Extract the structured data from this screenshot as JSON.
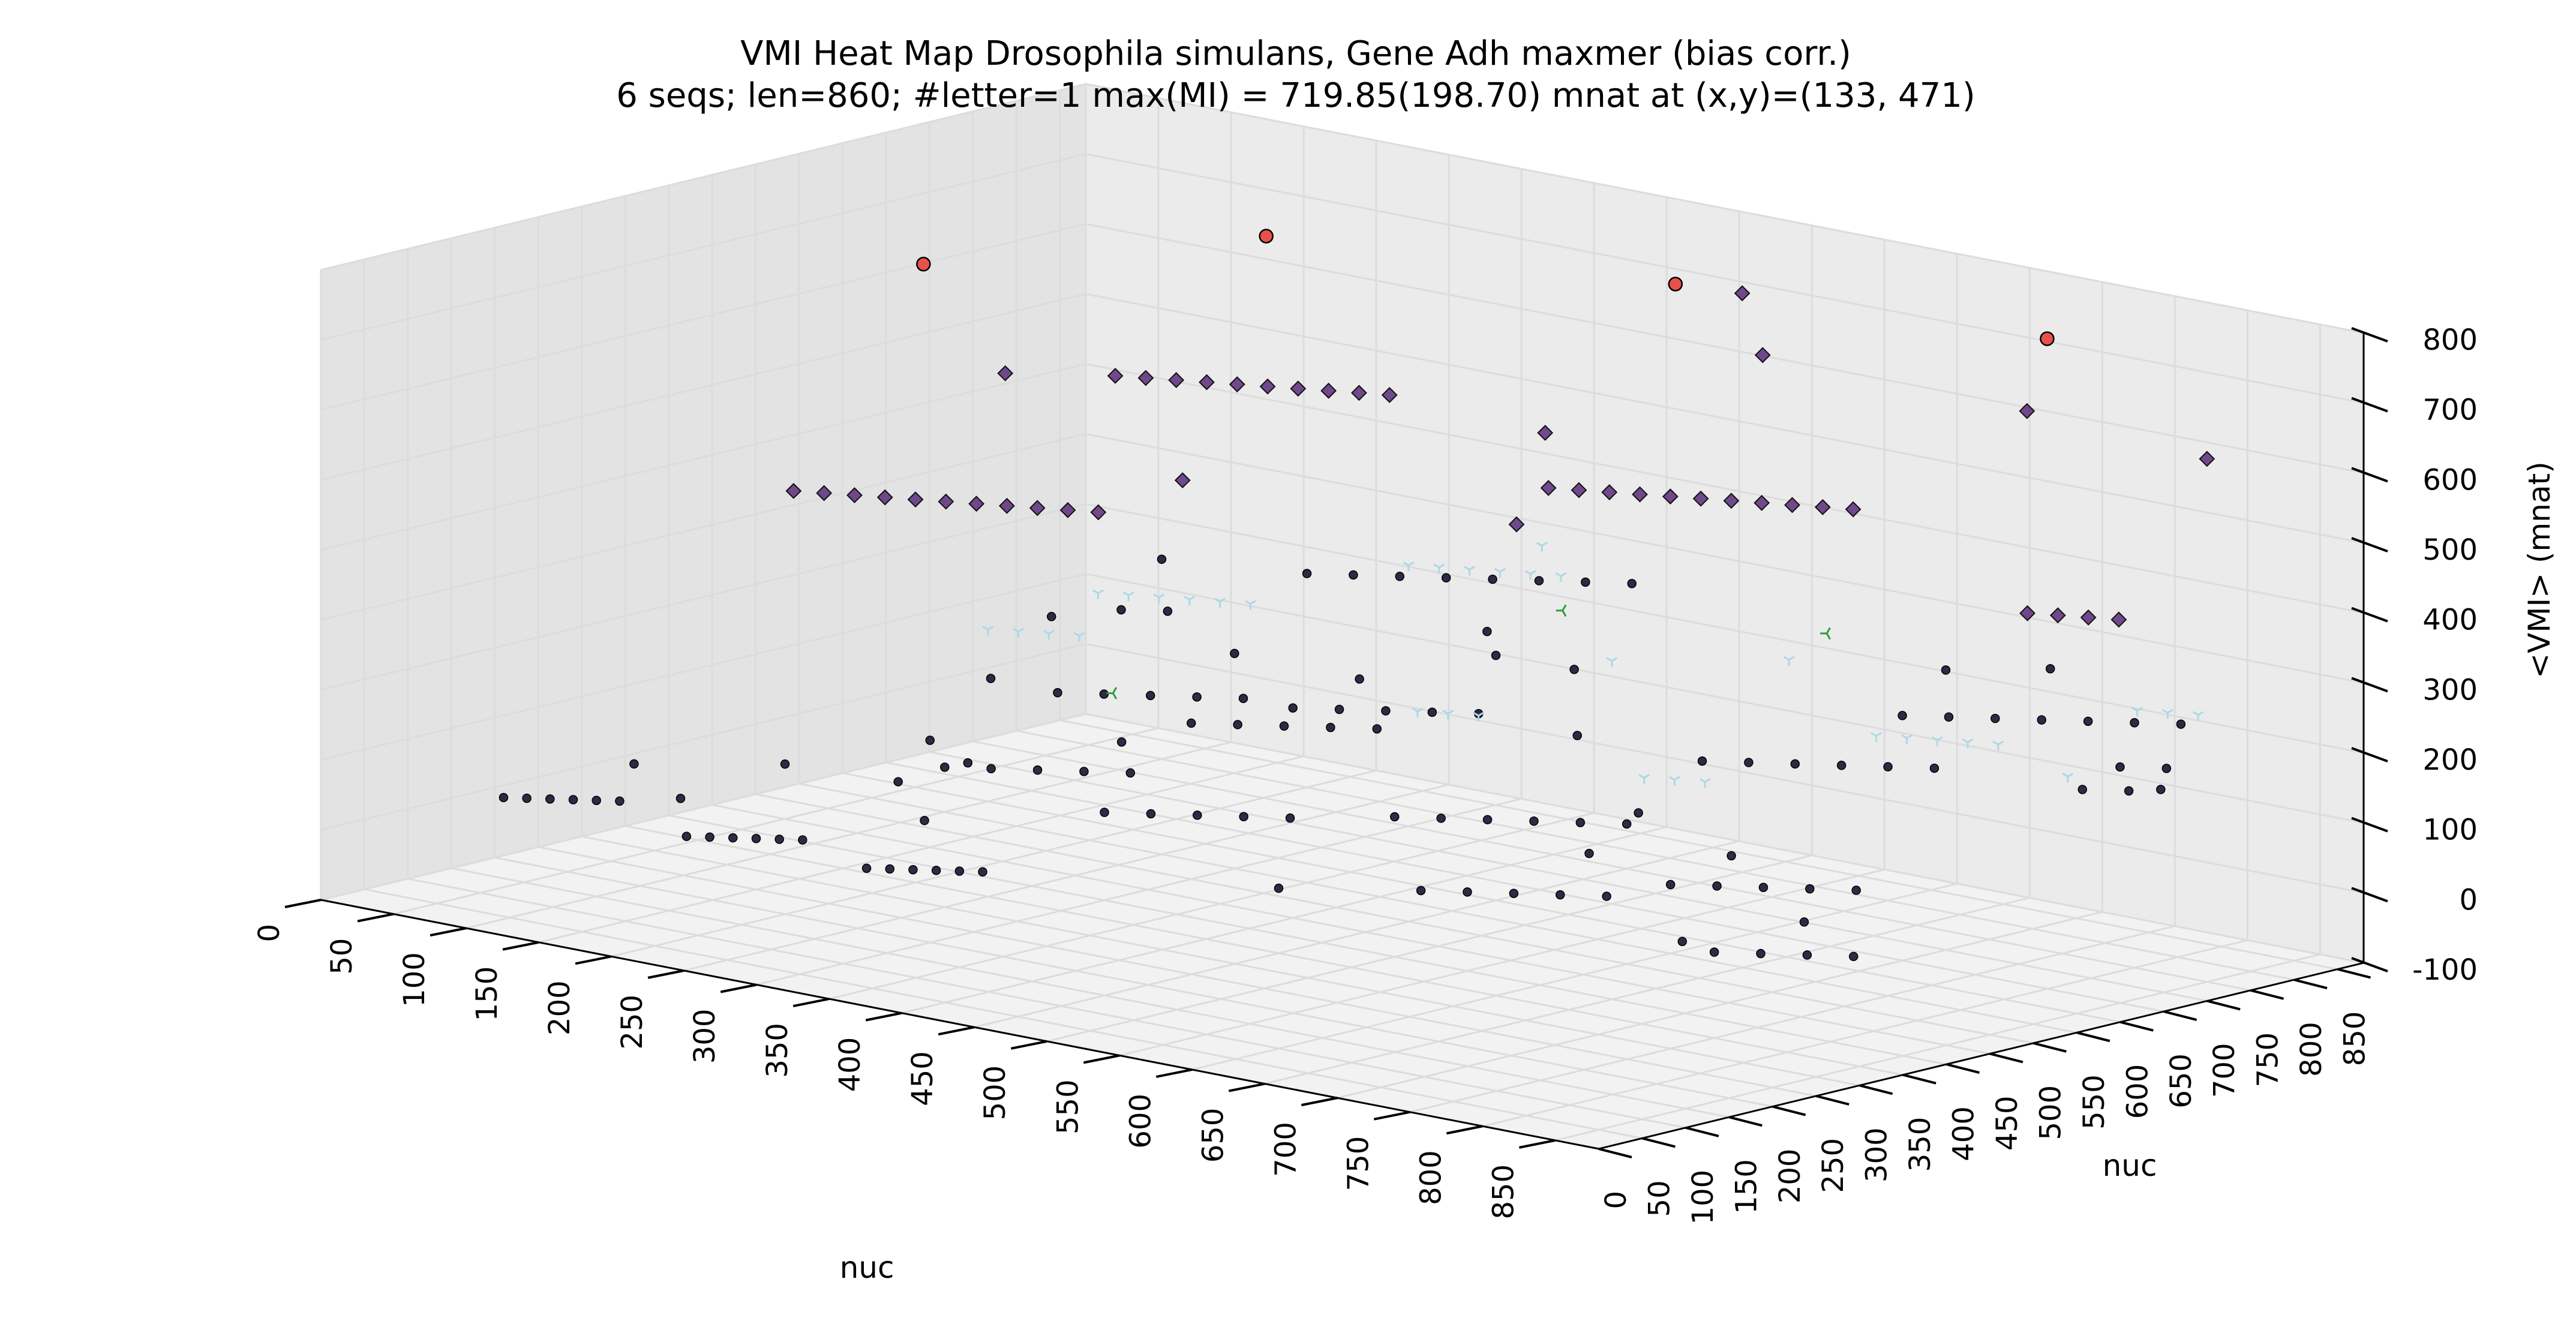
{
  "chart_data": {
    "type": "scatter",
    "title": "VMI Heat Map Drosophila simulans, Gene Adh maxmer (bias corr.)",
    "subtitle": "6 seqs; len=860; #letter=1 max(MI) = 719.85(198.70) mnat at (x,y)=(133, 471)",
    "xlabel": "nuc",
    "ylabel": "nuc",
    "zlabel": "<VMI> (mnat)",
    "x_ticks": [
      "0",
      "50",
      "100",
      "150",
      "200",
      "250",
      "300",
      "350",
      "400",
      "450",
      "500",
      "550",
      "600",
      "650",
      "700",
      "750",
      "800",
      "850"
    ],
    "y_ticks": [
      "0",
      "50",
      "100",
      "150",
      "200",
      "250",
      "300",
      "350",
      "400",
      "450",
      "500",
      "550",
      "600",
      "650",
      "700",
      "750",
      "800",
      "850"
    ],
    "z_ticks": [
      "-100",
      "0",
      "100",
      "200",
      "300",
      "400",
      "500",
      "600",
      "700",
      "800"
    ],
    "xlim": [
      0,
      880
    ],
    "ylim": [
      0,
      880
    ],
    "zlim": [
      -100,
      800
    ],
    "grid": true,
    "series": [
      {
        "color": "#1a1433",
        "marker": "circle",
        "points": [
          [
            30,
            160,
            10
          ],
          [
            40,
            170,
            10
          ],
          [
            50,
            180,
            10
          ],
          [
            60,
            190,
            10
          ],
          [
            70,
            200,
            10
          ],
          [
            80,
            210,
            10
          ],
          [
            60,
            260,
            40
          ],
          [
            110,
            230,
            20
          ],
          [
            150,
            170,
            0
          ],
          [
            160,
            180,
            0
          ],
          [
            170,
            190,
            0
          ],
          [
            180,
            200,
            0
          ],
          [
            190,
            210,
            0
          ],
          [
            200,
            220,
            0
          ],
          [
            140,
            300,
            60
          ],
          [
            280,
            160,
            10
          ],
          [
            290,
            170,
            10
          ],
          [
            300,
            180,
            10
          ],
          [
            310,
            190,
            10
          ],
          [
            320,
            200,
            10
          ],
          [
            330,
            210,
            10
          ],
          [
            260,
            260,
            40
          ],
          [
            250,
            300,
            100
          ],
          [
            270,
            320,
            100
          ],
          [
            290,
            340,
            100
          ],
          [
            310,
            360,
            100
          ],
          [
            330,
            380,
            100
          ],
          [
            300,
            420,
            120
          ],
          [
            200,
            330,
            50
          ],
          [
            230,
            360,
            80
          ],
          [
            180,
            400,
            80
          ],
          [
            360,
            300,
            80
          ],
          [
            380,
            320,
            80
          ],
          [
            400,
            340,
            80
          ],
          [
            420,
            360,
            80
          ],
          [
            440,
            380,
            80
          ],
          [
            400,
            450,
            200
          ],
          [
            420,
            470,
            200
          ],
          [
            440,
            490,
            200
          ],
          [
            460,
            510,
            200
          ],
          [
            480,
            530,
            200
          ],
          [
            450,
            600,
            250
          ],
          [
            420,
            640,
            260
          ],
          [
            330,
            450,
            150
          ],
          [
            350,
            470,
            150
          ],
          [
            370,
            490,
            150
          ],
          [
            390,
            510,
            150
          ],
          [
            410,
            530,
            150
          ],
          [
            380,
            560,
            200
          ],
          [
            220,
            480,
            140
          ],
          [
            240,
            500,
            140
          ],
          [
            260,
            520,
            140
          ],
          [
            280,
            540,
            140
          ],
          [
            300,
            560,
            140
          ],
          [
            270,
            600,
            180
          ],
          [
            150,
            520,
            120
          ],
          [
            500,
            400,
            100
          ],
          [
            520,
            420,
            100
          ],
          [
            540,
            440,
            100
          ],
          [
            560,
            460,
            100
          ],
          [
            580,
            480,
            100
          ],
          [
            600,
            500,
            100
          ],
          [
            530,
            560,
            180
          ],
          [
            560,
            330,
            40
          ],
          [
            580,
            350,
            40
          ],
          [
            600,
            370,
            40
          ],
          [
            620,
            390,
            40
          ],
          [
            640,
            410,
            40
          ],
          [
            610,
            440,
            80
          ],
          [
            480,
            300,
            20
          ],
          [
            640,
            520,
            200
          ],
          [
            660,
            540,
            200
          ],
          [
            680,
            560,
            200
          ],
          [
            700,
            580,
            200
          ],
          [
            720,
            600,
            200
          ],
          [
            740,
            620,
            200
          ],
          [
            700,
            700,
            300
          ],
          [
            760,
            720,
            320
          ],
          [
            690,
            400,
            80
          ],
          [
            710,
            420,
            80
          ],
          [
            730,
            440,
            80
          ],
          [
            750,
            460,
            80
          ],
          [
            770,
            480,
            80
          ],
          [
            690,
            470,
            100
          ],
          [
            620,
            480,
            130
          ],
          [
            780,
            300,
            50
          ],
          [
            800,
            320,
            50
          ],
          [
            820,
            340,
            50
          ],
          [
            840,
            360,
            50
          ],
          [
            800,
            370,
            80
          ],
          [
            740,
            330,
            40
          ],
          [
            700,
            650,
            250
          ],
          [
            720,
            670,
            250
          ],
          [
            740,
            690,
            250
          ],
          [
            760,
            710,
            250
          ],
          [
            780,
            730,
            250
          ],
          [
            800,
            750,
            250
          ],
          [
            820,
            770,
            250
          ],
          [
            830,
            640,
            200
          ],
          [
            850,
            660,
            200
          ],
          [
            860,
            680,
            200
          ],
          [
            820,
            700,
            210
          ],
          [
            840,
            720,
            210
          ],
          [
            260,
            700,
            260
          ],
          [
            280,
            720,
            260
          ],
          [
            300,
            740,
            260
          ],
          [
            320,
            760,
            260
          ],
          [
            340,
            780,
            260
          ],
          [
            360,
            800,
            260
          ],
          [
            380,
            820,
            260
          ],
          [
            400,
            840,
            260
          ],
          [
            180,
            620,
            200
          ],
          [
            200,
            640,
            200
          ],
          [
            160,
            700,
            240
          ],
          [
            120,
            640,
            160
          ],
          [
            480,
            640,
            230
          ]
        ]
      },
      {
        "color": "#5b2b7a",
        "marker": "diamond",
        "points": [
          [
            140,
            680,
            500
          ],
          [
            155,
            690,
            500
          ],
          [
            170,
            700,
            500
          ],
          [
            185,
            710,
            500
          ],
          [
            200,
            720,
            500
          ],
          [
            215,
            730,
            500
          ],
          [
            230,
            740,
            500
          ],
          [
            245,
            750,
            500
          ],
          [
            260,
            760,
            500
          ],
          [
            275,
            770,
            500
          ],
          [
            110,
            360,
            420
          ],
          [
            125,
            370,
            420
          ],
          [
            140,
            380,
            420
          ],
          [
            155,
            390,
            420
          ],
          [
            170,
            400,
            420
          ],
          [
            185,
            410,
            420
          ],
          [
            200,
            420,
            420
          ],
          [
            215,
            430,
            420
          ],
          [
            230,
            440,
            420
          ],
          [
            245,
            450,
            420
          ],
          [
            260,
            460,
            420
          ],
          [
            570,
            460,
            580
          ],
          [
            585,
            470,
            580
          ],
          [
            600,
            480,
            580
          ],
          [
            615,
            490,
            580
          ],
          [
            630,
            500,
            580
          ],
          [
            645,
            510,
            580
          ],
          [
            660,
            520,
            580
          ],
          [
            675,
            530,
            580
          ],
          [
            690,
            540,
            580
          ],
          [
            705,
            550,
            580
          ],
          [
            720,
            560,
            580
          ],
          [
            330,
            440,
            500
          ],
          [
            160,
            520,
            560
          ],
          [
            460,
            640,
            560
          ],
          [
            560,
            440,
            530
          ],
          [
            470,
            850,
            700
          ],
          [
            520,
            790,
            650
          ],
          [
            720,
            760,
            660
          ],
          [
            820,
            800,
            620
          ],
          [
            840,
            560,
            480
          ],
          [
            855,
            570,
            480
          ],
          [
            870,
            580,
            480
          ],
          [
            885,
            590,
            480
          ]
        ]
      },
      {
        "color": "#add8e6",
        "marker": "tri_down",
        "points": [
          [
            200,
            560,
            250
          ],
          [
            215,
            570,
            250
          ],
          [
            230,
            580,
            250
          ],
          [
            245,
            590,
            250
          ],
          [
            260,
            600,
            250
          ],
          [
            275,
            610,
            250
          ],
          [
            160,
            500,
            200
          ],
          [
            175,
            510,
            200
          ],
          [
            190,
            520,
            200
          ],
          [
            205,
            530,
            200
          ],
          [
            330,
            700,
            300
          ],
          [
            345,
            710,
            300
          ],
          [
            360,
            720,
            300
          ],
          [
            375,
            730,
            300
          ],
          [
            390,
            740,
            300
          ],
          [
            405,
            750,
            300
          ],
          [
            420,
            560,
            170
          ],
          [
            435,
            570,
            170
          ],
          [
            450,
            580,
            170
          ],
          [
            600,
            520,
            160
          ],
          [
            615,
            530,
            160
          ],
          [
            630,
            540,
            160
          ],
          [
            700,
            620,
            230
          ],
          [
            715,
            630,
            230
          ],
          [
            730,
            640,
            230
          ],
          [
            745,
            650,
            230
          ],
          [
            760,
            660,
            230
          ],
          [
            760,
            820,
            230
          ],
          [
            775,
            830,
            230
          ],
          [
            790,
            840,
            230
          ],
          [
            470,
            700,
            220
          ],
          [
            580,
            720,
            260
          ],
          [
            760,
            740,
            160
          ],
          [
            350,
            820,
            300
          ]
        ]
      },
      {
        "color": "#2a9d3c",
        "marker": "tri_left",
        "points": [
          [
            330,
            360,
            220
          ],
          [
            460,
            660,
            300
          ],
          [
            630,
            680,
            330
          ]
        ]
      },
      {
        "color": "#e8403a",
        "marker": "circle_large",
        "points": [
          [
            220,
            720,
            719.85
          ],
          [
            133,
            471,
            719.85
          ],
          [
            680,
            850,
            720
          ],
          [
            430,
            840,
            700
          ]
        ]
      }
    ]
  }
}
